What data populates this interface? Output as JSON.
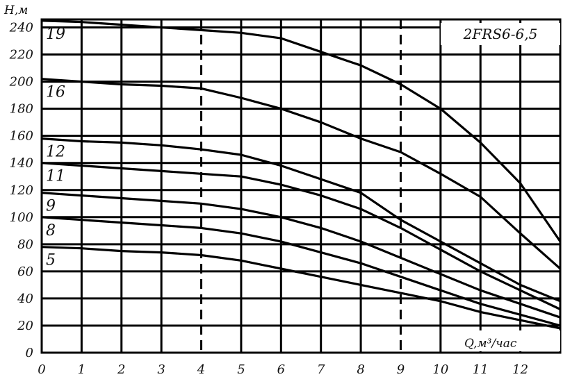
{
  "chart_data": {
    "type": "line",
    "title": "2FRS6-6,5",
    "xlabel": "Q,м³/час",
    "ylabel": "H,м",
    "xlim": [
      0,
      13
    ],
    "ylim": [
      0,
      250
    ],
    "xticks": [
      "0",
      "1",
      "2",
      "3",
      "4",
      "5",
      "6",
      "7",
      "8",
      "9",
      "10",
      "11",
      "12"
    ],
    "yticks": [
      "0",
      "20",
      "40",
      "60",
      "80",
      "100",
      "120",
      "140",
      "160",
      "180",
      "200",
      "220",
      "240"
    ],
    "dashed_x": [
      4,
      9
    ],
    "grid": true,
    "series": [
      {
        "name": "19",
        "x": [
          0,
          1,
          2,
          3,
          4,
          5,
          6,
          7,
          8,
          9,
          10,
          11,
          12,
          13
        ],
        "y": [
          245,
          244,
          242,
          240,
          238,
          236,
          232,
          222,
          212,
          198,
          180,
          155,
          125,
          82
        ]
      },
      {
        "name": "16",
        "x": [
          0,
          1,
          2,
          3,
          4,
          5,
          6,
          7,
          8,
          9,
          10,
          11,
          12,
          13
        ],
        "y": [
          202,
          200,
          198,
          197,
          195,
          188,
          180,
          170,
          158,
          148,
          132,
          115,
          88,
          62
        ]
      },
      {
        "name": "12",
        "x": [
          0,
          1,
          2,
          3,
          4,
          5,
          6,
          7,
          8,
          9,
          10,
          11,
          12,
          13
        ],
        "y": [
          158,
          156,
          155,
          153,
          150,
          146,
          138,
          128,
          118,
          98,
          82,
          66,
          50,
          38
        ]
      },
      {
        "name": "11",
        "x": [
          0,
          1,
          2,
          3,
          4,
          5,
          6,
          7,
          8,
          9,
          10,
          11,
          12,
          13
        ],
        "y": [
          140,
          138,
          136,
          134,
          132,
          130,
          124,
          116,
          106,
          92,
          76,
          60,
          46,
          32
        ]
      },
      {
        "name": "9",
        "x": [
          0,
          1,
          2,
          3,
          4,
          5,
          6,
          7,
          8,
          9,
          10,
          11,
          12,
          13
        ],
        "y": [
          118,
          116,
          114,
          112,
          110,
          106,
          100,
          92,
          82,
          70,
          58,
          46,
          36,
          26
        ]
      },
      {
        "name": "8",
        "x": [
          0,
          1,
          2,
          3,
          4,
          5,
          6,
          7,
          8,
          9,
          10,
          11,
          12,
          13
        ],
        "y": [
          100,
          98,
          96,
          94,
          92,
          88,
          82,
          74,
          66,
          56,
          46,
          36,
          28,
          20
        ]
      },
      {
        "name": "5",
        "x": [
          0,
          1,
          2,
          3,
          4,
          5,
          6,
          7,
          8,
          9,
          10,
          11,
          12,
          13
        ],
        "y": [
          78,
          77,
          75,
          74,
          72,
          68,
          62,
          56,
          50,
          44,
          38,
          30,
          24,
          18
        ]
      }
    ]
  }
}
